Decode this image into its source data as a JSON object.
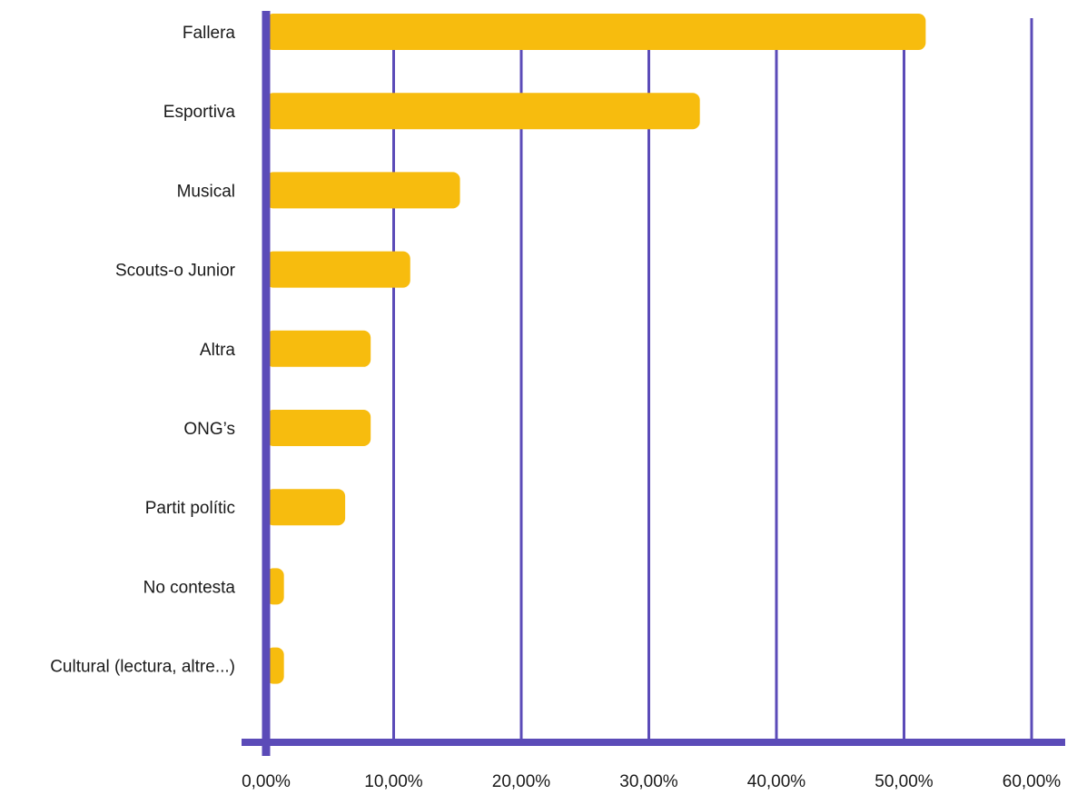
{
  "chart_data": {
    "type": "bar",
    "orientation": "horizontal",
    "categories": [
      "Fallera",
      "Esportiva",
      "Musical",
      "Scouts-o Junior",
      "Altra",
      "ONG’s",
      "Partit  polític",
      "No contesta",
      "Cultural (lectura, altre...)"
    ],
    "values": [
      51.7,
      34.0,
      15.2,
      11.3,
      8.2,
      8.2,
      6.2,
      1.4,
      1.4
    ],
    "xlim": [
      0,
      60
    ],
    "xticks": [
      0,
      10,
      20,
      30,
      40,
      50,
      60
    ],
    "xtick_labels": [
      "0,00%",
      "10,00%",
      "20,00%",
      "30,00%",
      "40,00%",
      "50,00%",
      "60,00%"
    ],
    "title": "",
    "xlabel": "",
    "ylabel": "",
    "grid": "vertical",
    "legend": "none",
    "colors": {
      "bar": "#F7BC0E",
      "grid": "#5B4BB8",
      "axis": "#5B4BB8",
      "text": "#1a1a1a"
    }
  }
}
